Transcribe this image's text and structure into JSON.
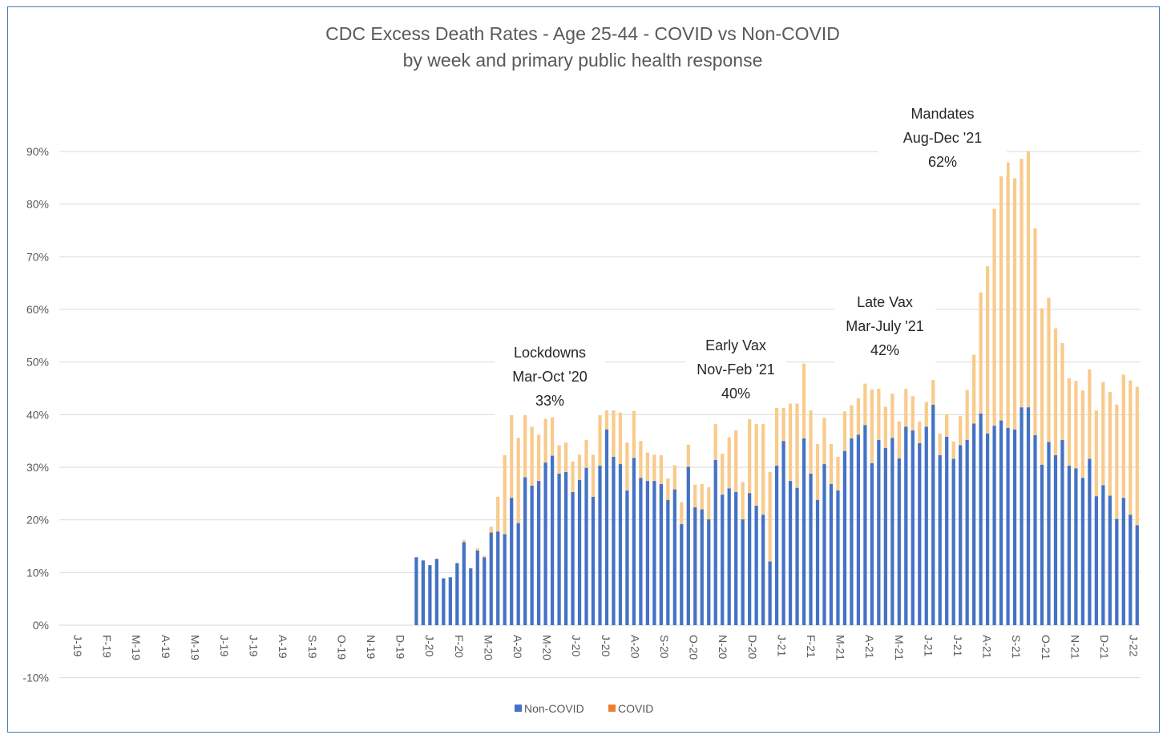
{
  "chart_data": {
    "type": "bar",
    "stacked": true,
    "title": "CDC Excess Death Rates - Age 25-44 - COVID vs Non-COVID",
    "subtitle": "by week and primary public health response",
    "ylim": [
      -10,
      90
    ],
    "yticks": [
      "-10%",
      "0%",
      "10%",
      "20%",
      "30%",
      "40%",
      "50%",
      "60%",
      "70%",
      "80%",
      "90%"
    ],
    "ytick_values": [
      -10,
      0,
      10,
      20,
      30,
      40,
      50,
      60,
      70,
      80,
      90
    ],
    "grid": true,
    "x_tick_labels": [
      "J-19",
      "F-19",
      "M-19",
      "A-19",
      "M-19",
      "J-19",
      "J-19",
      "A-19",
      "S-19",
      "O-19",
      "N-19",
      "D-19",
      "J-20",
      "F-20",
      "M-20",
      "A-20",
      "M-20",
      "J-20",
      "J-20",
      "A-20",
      "S-20",
      "O-20",
      "N-20",
      "D-20",
      "J-21",
      "F-21",
      "M-21",
      "A-21",
      "M-21",
      "J-21",
      "J-21",
      "A-21",
      "S-21",
      "O-21",
      "N-21",
      "D-21",
      "J-22"
    ],
    "weeks_before_data": 52,
    "legend_position": "bottom",
    "series": [
      {
        "name": "Non-COVID",
        "color": "#4472c4",
        "values": [
          12.9,
          12.3,
          11.4,
          12.6,
          8.9,
          9.1,
          11.8,
          15.8,
          10.8,
          14.2,
          12.9,
          17.6,
          17.8,
          17.3,
          24.2,
          19.4,
          28.1,
          26.5,
          27.4,
          30.9,
          32.2,
          28.8,
          29.1,
          25.3,
          27.6,
          29.9,
          24.4,
          30.3,
          37.2,
          32.0,
          30.6,
          25.6,
          31.8,
          28.0,
          27.4,
          27.4,
          26.8,
          23.8,
          25.8,
          19.2,
          30.1,
          22.4,
          22.0,
          20.1,
          31.4,
          24.8,
          26.0,
          25.3,
          20.1,
          25.1,
          22.7,
          21.0,
          12.1,
          30.3,
          35.0,
          27.4,
          26.1,
          35.5,
          28.8,
          23.8,
          30.6,
          26.8,
          25.6,
          33.1,
          35.5,
          36.2,
          38.0,
          30.8,
          35.2,
          33.7,
          35.6,
          31.7,
          37.7,
          37.0,
          34.6,
          37.7,
          41.9,
          32.3,
          35.8,
          31.6,
          34.2,
          35.2,
          38.3,
          40.2,
          36.4,
          37.9,
          38.9,
          37.5,
          37.2,
          41.4,
          41.4,
          36.1,
          30.5,
          34.8,
          32.3,
          35.2,
          30.3,
          29.8,
          28.0,
          31.6,
          24.5,
          26.6,
          24.6,
          20.2,
          24.2,
          21.0,
          19.0
        ]
      },
      {
        "name": "COVID",
        "color": "#f8cb8c",
        "values": [
          0,
          0,
          0,
          0,
          0,
          0,
          0,
          0.4,
          0,
          0.4,
          0.3,
          1.1,
          6.6,
          15.0,
          16.2,
          16.2,
          11.8,
          11.2,
          8.8,
          8.3,
          7.3,
          5.4,
          5.6,
          5.8,
          4.8,
          5.3,
          8.0,
          10.4,
          3.6,
          8.8,
          9.8,
          9.1,
          8.9,
          7.0,
          5.4,
          5.0,
          5.5,
          4.1,
          4.6,
          4.2,
          4.2,
          4.3,
          4.8,
          6.1,
          6.8,
          7.8,
          9.7,
          11.7,
          7.1,
          14.0,
          15.5,
          17.2,
          17.0,
          11.9,
          7.3,
          14.7,
          16.0,
          14.2,
          12.0,
          10.6,
          8.8,
          7.6,
          6.4,
          7.5,
          6.3,
          6.9,
          7.9,
          14.0,
          9.7,
          7.8,
          8.4,
          7.0,
          7.2,
          6.5,
          4.1,
          4.7,
          4.7,
          4.1,
          4.3,
          3.3,
          5.5,
          9.5,
          13.1,
          23.0,
          31.8,
          41.2,
          46.4,
          50.4,
          47.7,
          47.2,
          48.7,
          39.3,
          29.7,
          27.4,
          24.1,
          18.4,
          16.6,
          16.6,
          16.6,
          17.0,
          16.3,
          19.6,
          19.7,
          21.7,
          23.4,
          25.5,
          26.3
        ]
      }
    ],
    "annotations": [
      {
        "lines": [
          "Lockdowns",
          "Mar-Oct '20",
          "33%"
        ]
      },
      {
        "lines": [
          "Early Vax",
          "Nov-Feb '21",
          "40%"
        ]
      },
      {
        "lines": [
          "Late Vax",
          "Mar-July '21",
          "42%"
        ]
      },
      {
        "lines": [
          "Mandates",
          "Aug-Dec '21",
          "62%"
        ]
      }
    ]
  }
}
